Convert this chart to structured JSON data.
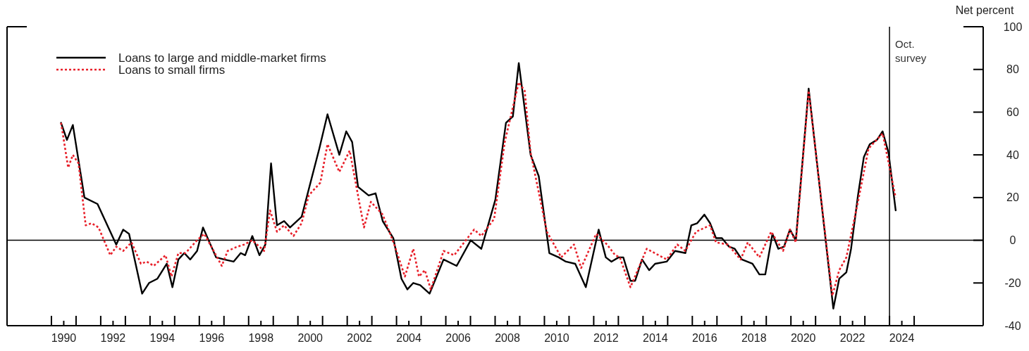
{
  "chart_data": {
    "type": "line",
    "ylabel": "Net percent",
    "xlim": [
      1988.2,
      2027.8
    ],
    "ylim": [
      -40,
      100
    ],
    "yticks": [
      -40,
      -20,
      0,
      20,
      40,
      60,
      80,
      100
    ],
    "xticks": [
      {
        "value": 1990,
        "label": null
      },
      {
        "value": 1991,
        "label": null
      },
      {
        "value": 1992,
        "label": null
      },
      {
        "value": 1993,
        "label": null
      },
      {
        "value": 1994,
        "label": null
      },
      {
        "value": 1995,
        "label": null
      },
      {
        "value": 1996,
        "label": null
      },
      {
        "value": 1997,
        "label": null
      },
      {
        "value": 1998,
        "label": null
      },
      {
        "value": 1999,
        "label": null
      },
      {
        "value": 2000,
        "label": null
      },
      {
        "value": 2001,
        "label": null
      },
      {
        "value": 2002,
        "label": null
      },
      {
        "value": 2003,
        "label": null
      },
      {
        "value": 2004,
        "label": null
      },
      {
        "value": 2005,
        "label": null
      },
      {
        "value": 2006,
        "label": null
      },
      {
        "value": 2007,
        "label": null
      },
      {
        "value": 2008,
        "label": null
      },
      {
        "value": 2009,
        "label": null
      },
      {
        "value": 2010,
        "label": null
      },
      {
        "value": 2011,
        "label": null
      },
      {
        "value": 2012,
        "label": null
      },
      {
        "value": 2013,
        "label": null
      },
      {
        "value": 2014,
        "label": null
      },
      {
        "value": 2015,
        "label": null
      },
      {
        "value": 2016,
        "label": null
      },
      {
        "value": 2017,
        "label": null
      },
      {
        "value": 2018,
        "label": null
      },
      {
        "value": 2019,
        "label": null
      },
      {
        "value": 2020,
        "label": null
      },
      {
        "value": 2021,
        "label": null
      },
      {
        "value": 2022,
        "label": null
      },
      {
        "value": 2023,
        "label": null
      },
      {
        "value": 2024,
        "label": null
      },
      {
        "value": 2025,
        "label": null
      },
      {
        "value": 1990.5,
        "label": "1990"
      },
      {
        "value": 1992.5,
        "label": "1992"
      },
      {
        "value": 1994.5,
        "label": "1994"
      },
      {
        "value": 1996.5,
        "label": "1996"
      },
      {
        "value": 1998.5,
        "label": "1998"
      },
      {
        "value": 2000.5,
        "label": "2000"
      },
      {
        "value": 2002.5,
        "label": "2002"
      },
      {
        "value": 2004.5,
        "label": "2004"
      },
      {
        "value": 2006.5,
        "label": "2006"
      },
      {
        "value": 2008.5,
        "label": "2008"
      },
      {
        "value": 2010.5,
        "label": "2010"
      },
      {
        "value": 2012.5,
        "label": "2012"
      },
      {
        "value": 2014.5,
        "label": "2014"
      },
      {
        "value": 2016.5,
        "label": "2016"
      },
      {
        "value": 2018.5,
        "label": "2018"
      },
      {
        "value": 2020.5,
        "label": "2020"
      },
      {
        "value": 2022.5,
        "label": "2022"
      },
      {
        "value": 2024.5,
        "label": "2024"
      }
    ],
    "grid": false,
    "legend": "top left",
    "marker": "none",
    "ref_lines": [
      {
        "axis": "y",
        "value": 0,
        "color": "#000000"
      },
      {
        "axis": "x",
        "value": 2024,
        "label": "Oct. survey",
        "color": "#000000"
      }
    ],
    "series": [
      {
        "name": "Loans to large and middle-market firms",
        "color": "#000000",
        "line_style": "solid",
        "x": [
          1990.39,
          1990.63,
          1990.87,
          1991.34,
          1991.87,
          1992.63,
          1992.91,
          1993.15,
          1993.68,
          1993.96,
          1994.3,
          1994.68,
          1994.91,
          1995.15,
          1995.39,
          1995.63,
          1995.91,
          1996.15,
          1996.68,
          1997.01,
          1997.39,
          1997.68,
          1997.86,
          1998.15,
          1998.44,
          1998.68,
          1998.91,
          1999.15,
          1999.44,
          1999.68,
          2000.15,
          2000.87,
          2001.2,
          2001.68,
          2001.96,
          2002.2,
          2002.44,
          2002.87,
          2003.15,
          2003.44,
          2003.87,
          2004.2,
          2004.44,
          2004.68,
          2004.96,
          2005.34,
          2005.91,
          2006.44,
          2007.01,
          2007.44,
          2008.01,
          2008.44,
          2008.72,
          2008.96,
          2009.44,
          2009.77,
          2010.2,
          2010.58,
          2010.87,
          2011.25,
          2011.68,
          2012.2,
          2012.49,
          2012.72,
          2013.01,
          2013.2,
          2013.49,
          2013.68,
          2013.96,
          2014.25,
          2014.49,
          2014.96,
          2015.3,
          2015.72,
          2015.96,
          2016.2,
          2016.49,
          2016.72,
          2016.96,
          2017.2,
          2017.49,
          2017.72,
          2018.01,
          2018.44,
          2018.72,
          2018.96,
          2019.25,
          2019.49,
          2019.72,
          2019.96,
          2020.2,
          2020.72,
          2021.72,
          2021.96,
          2022.25,
          2022.44,
          2022.72,
          2022.96,
          2023.2,
          2023.49,
          2023.72,
          2023.96,
          2024.25
        ],
        "values": [
          55,
          47,
          54,
          20,
          17,
          -2,
          5,
          3,
          -25,
          -20,
          -18,
          -11,
          -22,
          -9,
          -6,
          -9,
          -5,
          6,
          -8,
          -9,
          -10,
          -6,
          -7,
          2,
          -7,
          -2,
          36,
          7,
          9,
          6,
          11,
          43,
          59,
          40,
          51,
          46,
          25,
          21,
          22,
          9,
          1,
          -18,
          -23,
          -20,
          -21,
          -25,
          -9,
          -12,
          0,
          -4,
          19,
          55,
          58,
          83,
          40,
          30,
          -6,
          -8,
          -10,
          -11,
          -22,
          5,
          -8,
          -10,
          -8,
          -8,
          -19,
          -19,
          -9,
          -14,
          -11,
          -10,
          -5,
          -6,
          7,
          8,
          12,
          8,
          1,
          1,
          -3,
          -4,
          -9,
          -11,
          -16,
          -16,
          3,
          -4,
          -3,
          5,
          0,
          71,
          -32,
          -18,
          -15,
          -4,
          21,
          39,
          45,
          47,
          51,
          41,
          14
        ]
      },
      {
        "name": "Loans to small firms",
        "color": "#e8202a",
        "line_style": "dotted",
        "x": [
          1990.39,
          1990.68,
          1990.87,
          1991.1,
          1991.39,
          1991.63,
          1991.91,
          1992.39,
          1992.63,
          1992.91,
          1993.25,
          1993.63,
          1993.87,
          1994.15,
          1994.63,
          1994.87,
          1995.15,
          1995.44,
          1995.91,
          1996.2,
          1996.63,
          1996.91,
          1997.15,
          1997.54,
          1997.82,
          1998.15,
          1998.63,
          1998.87,
          1999.15,
          1999.44,
          1999.82,
          2000.15,
          2000.44,
          2000.91,
          2001.2,
          2001.68,
          2002.1,
          2002.68,
          2002.96,
          2003.44,
          2003.91,
          2004.34,
          2004.68,
          2004.91,
          2005.15,
          2005.39,
          2005.91,
          2006.34,
          2007.15,
          2007.44,
          2007.96,
          2008.39,
          2008.96,
          2009.2,
          2009.44,
          2010.1,
          2010.68,
          2011.2,
          2011.49,
          2012.1,
          2012.54,
          2012.87,
          2013.06,
          2013.49,
          2014.15,
          2014.96,
          2015.39,
          2015.72,
          2016.15,
          2016.72,
          2016.96,
          2017.44,
          2017.96,
          2018.25,
          2018.72,
          2019.2,
          2019.68,
          2019.96,
          2020.2,
          2020.72,
          2021.68,
          2021.96,
          2022.25,
          2022.72,
          2023.15,
          2023.72,
          2024.25
        ],
        "values": [
          55,
          34,
          40,
          36,
          7,
          8,
          6,
          -7,
          -3,
          -5,
          -1,
          -11,
          -10,
          -12,
          -7,
          -17,
          -6,
          -6,
          0,
          3,
          -6,
          -12,
          -5,
          -3,
          -2,
          0,
          -5,
          14,
          4,
          7,
          2,
          8,
          21,
          27,
          45,
          32,
          42,
          6,
          18,
          12,
          -2,
          -17,
          -4,
          -17,
          -14,
          -23,
          -5,
          -7,
          5,
          2,
          10,
          46,
          74,
          70,
          41,
          4,
          -8,
          -2,
          -13,
          3,
          -2,
          -7,
          -8,
          -22,
          -4,
          -9,
          -2,
          -5,
          4,
          7,
          -1,
          -2,
          -9,
          -1,
          -8,
          4,
          -5,
          5,
          -1,
          70,
          -26,
          -14,
          -8,
          18,
          43,
          50,
          20
        ]
      }
    ]
  }
}
